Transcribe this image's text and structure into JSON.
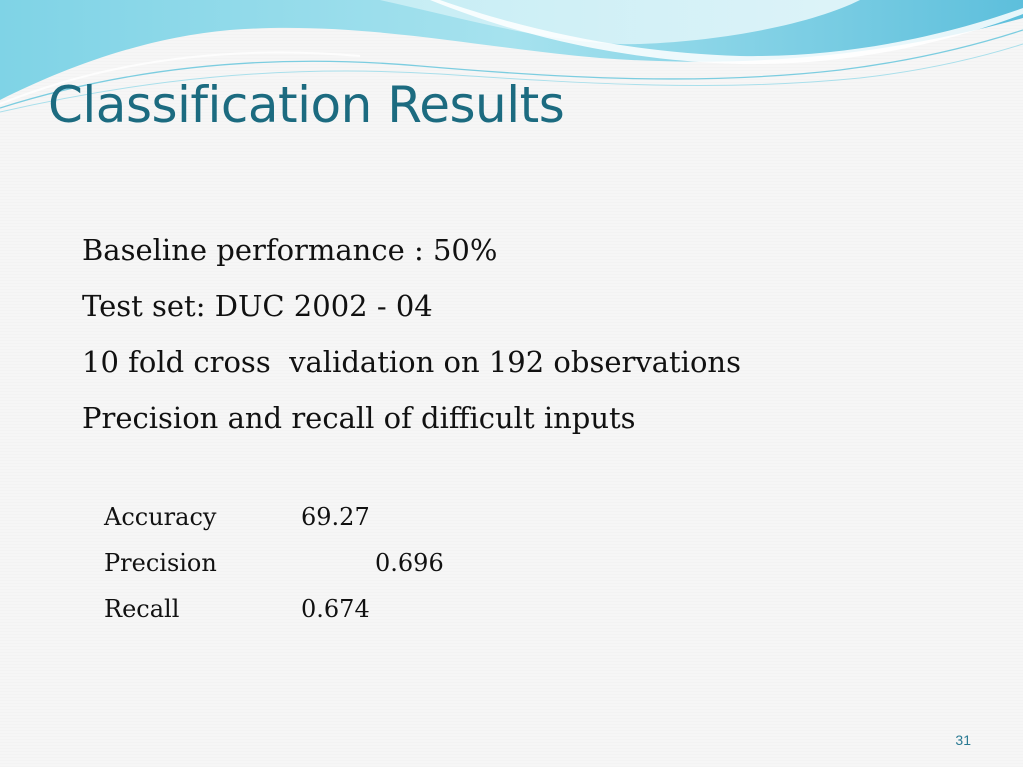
{
  "slide": {
    "title": "Classification Results",
    "bullets": [
      "Baseline performance : 50%",
      "Test set: DUC 2002 - 04",
      "10 fold cross  validation on 192 observations",
      "Precision and recall of difficult inputs"
    ],
    "metrics": [
      {
        "label": "Accuracy",
        "value": "69.27"
      },
      {
        "label": "Precision",
        "value": "0.696"
      },
      {
        "label": "Recall",
        "value": "0.674"
      }
    ],
    "page_number": "31"
  },
  "colors": {
    "title": "#1c6b80",
    "accent_wave": "#6fc8df",
    "background": "#f6f6f6"
  }
}
